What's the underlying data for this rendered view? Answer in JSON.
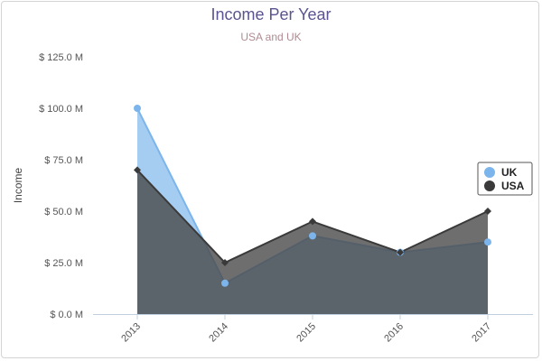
{
  "chart_data": {
    "type": "area",
    "title": "Income Per Year",
    "subtitle": "USA and UK",
    "ylabel": "Income",
    "xlabel": "",
    "categories": [
      "2013",
      "2014",
      "2015",
      "2016",
      "2017"
    ],
    "ylim": [
      0,
      125
    ],
    "yticks": [
      0,
      25,
      50,
      75,
      100,
      125
    ],
    "ytick_labels": [
      "$ 0.0 M",
      "$ 25.0 M",
      "$ 50.0 M",
      "$ 75.0 M",
      "$ 100.0 M",
      "$ 125.0 M"
    ],
    "series": [
      {
        "name": "UK",
        "values": [
          100,
          15,
          38,
          30,
          35
        ],
        "color": "#7cb5ec",
        "fill": "#8fbfee",
        "marker": "circle"
      },
      {
        "name": "USA",
        "values": [
          70,
          25,
          45,
          30,
          50
        ],
        "color": "#3a3a3a",
        "fill": "#4a4a4a",
        "marker": "diamond"
      }
    ],
    "legend": "right",
    "grid": false
  }
}
